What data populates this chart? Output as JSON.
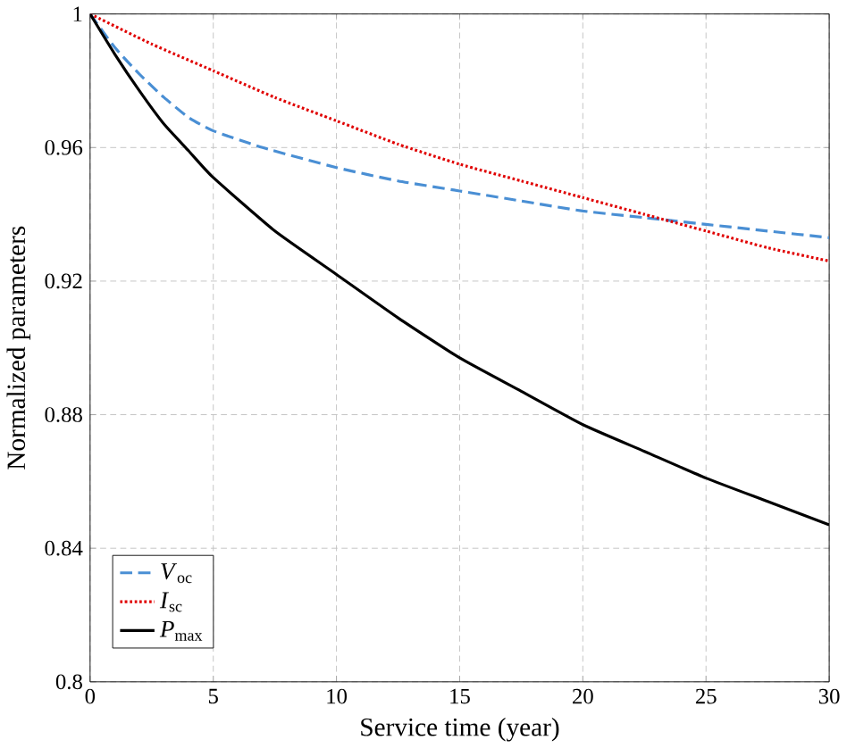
{
  "chart_data": {
    "type": "line",
    "xlabel": "Service time (year)",
    "ylabel": "Normalized parameters",
    "xlim": [
      0,
      30
    ],
    "ylim": [
      0.8,
      1
    ],
    "xticks": [
      0,
      5,
      10,
      15,
      20,
      25,
      30
    ],
    "yticks": [
      0.8,
      0.84,
      0.88,
      0.92,
      0.96,
      1
    ],
    "grid": true,
    "legend": "bottom left",
    "marker": "none",
    "series": [
      {
        "name": "*V*$_{oc}$",
        "color": "#4a8fd4",
        "line_style": "dashed",
        "x": [
          0,
          1,
          2,
          3,
          4,
          5,
          7,
          10,
          12.5,
          15,
          17.5,
          20,
          22.5,
          25,
          27.5,
          30
        ],
        "values": [
          1,
          0.99,
          0.982,
          0.975,
          0.969,
          0.965,
          0.96,
          0.954,
          0.95,
          0.947,
          0.944,
          0.941,
          0.939,
          0.937,
          0.935,
          0.933
        ]
      },
      {
        "name": "*I*$_{sc}$",
        "color": "#e00000",
        "line_style": "dotted",
        "x": [
          0,
          2.5,
          5,
          7.5,
          10,
          12.5,
          15,
          17.5,
          20,
          22.5,
          25,
          27.5,
          30
        ],
        "values": [
          1,
          0.991,
          0.983,
          0.975,
          0.968,
          0.961,
          0.955,
          0.95,
          0.945,
          0.94,
          0.935,
          0.93,
          0.926
        ]
      },
      {
        "name": "*P*$_{max}$",
        "color": "#000000",
        "line_style": "solid",
        "x": [
          0,
          1,
          2,
          3,
          4,
          5,
          7.5,
          10,
          12.5,
          15,
          17.5,
          20,
          22.5,
          25,
          27.5,
          30
        ],
        "values": [
          1,
          0.988,
          0.977,
          0.967,
          0.959,
          0.951,
          0.935,
          0.922,
          0.909,
          0.897,
          0.887,
          0.877,
          0.869,
          0.861,
          0.854,
          0.847
        ]
      }
    ]
  }
}
